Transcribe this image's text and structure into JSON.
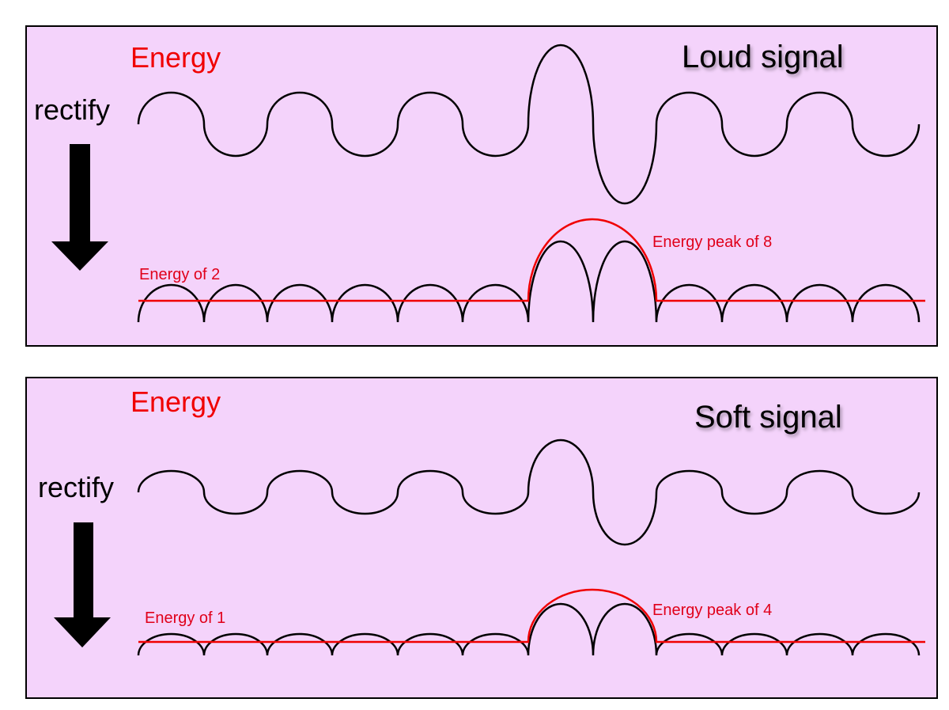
{
  "colors": {
    "panel_fill": "#f4d3fb",
    "energy": "#f00000",
    "wave": "#000000"
  },
  "panels": [
    {
      "title": "Loud signal",
      "energy_heading": "Energy",
      "rectify_label": "rectify",
      "baseline_label": "Energy of 2",
      "peak_label": "Energy peak of 8"
    },
    {
      "title": "Soft signal",
      "energy_heading": "Energy",
      "rectify_label": "rectify",
      "baseline_label": "Energy of 1",
      "peak_label": "Energy peak of 4"
    }
  ]
}
